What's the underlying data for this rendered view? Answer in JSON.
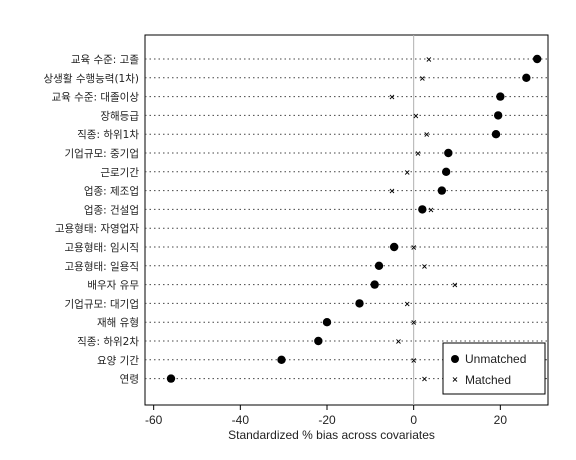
{
  "chart_data": {
    "type": "scatter",
    "categories": [
      "교육 수준: 고졸",
      "상생활 수행능력(1차)",
      "교육 수준: 대졸이상",
      "장해등급",
      "직종: 하위1차",
      "기업규모: 중기업",
      "근로기간",
      "업종: 제조업",
      "업종: 건설업",
      "고용형태: 자영업자",
      "고용형태: 임시직",
      "고용형태: 일용직",
      "배우자 유무",
      "기업규모: 대기업",
      "재해 유형",
      "직종: 하위2차",
      "요양 기간",
      "연령"
    ],
    "series": [
      {
        "name": "Unmatched",
        "marker": "dot",
        "values": [
          28.5,
          26,
          20,
          19.5,
          19,
          8,
          7.5,
          6.5,
          2,
          null,
          -4.5,
          -8,
          -9,
          -12.5,
          -20,
          -22,
          -30.5,
          -56
        ]
      },
      {
        "name": "Matched",
        "marker": "x",
        "values": [
          3.5,
          2,
          -5,
          0.5,
          3,
          1,
          -1.5,
          -5,
          4,
          null,
          0,
          2.5,
          9.5,
          -1.5,
          0,
          -3.5,
          0,
          2.5
        ]
      }
    ],
    "xlabel": "Standardized % bias across covariates",
    "xticks": [
      -60,
      -40,
      -20,
      0,
      20
    ],
    "xlim": [
      -62,
      31
    ],
    "reference_line_x": 0,
    "legend_position": "bottom-right",
    "grid": "dotted horizontal row guides"
  }
}
